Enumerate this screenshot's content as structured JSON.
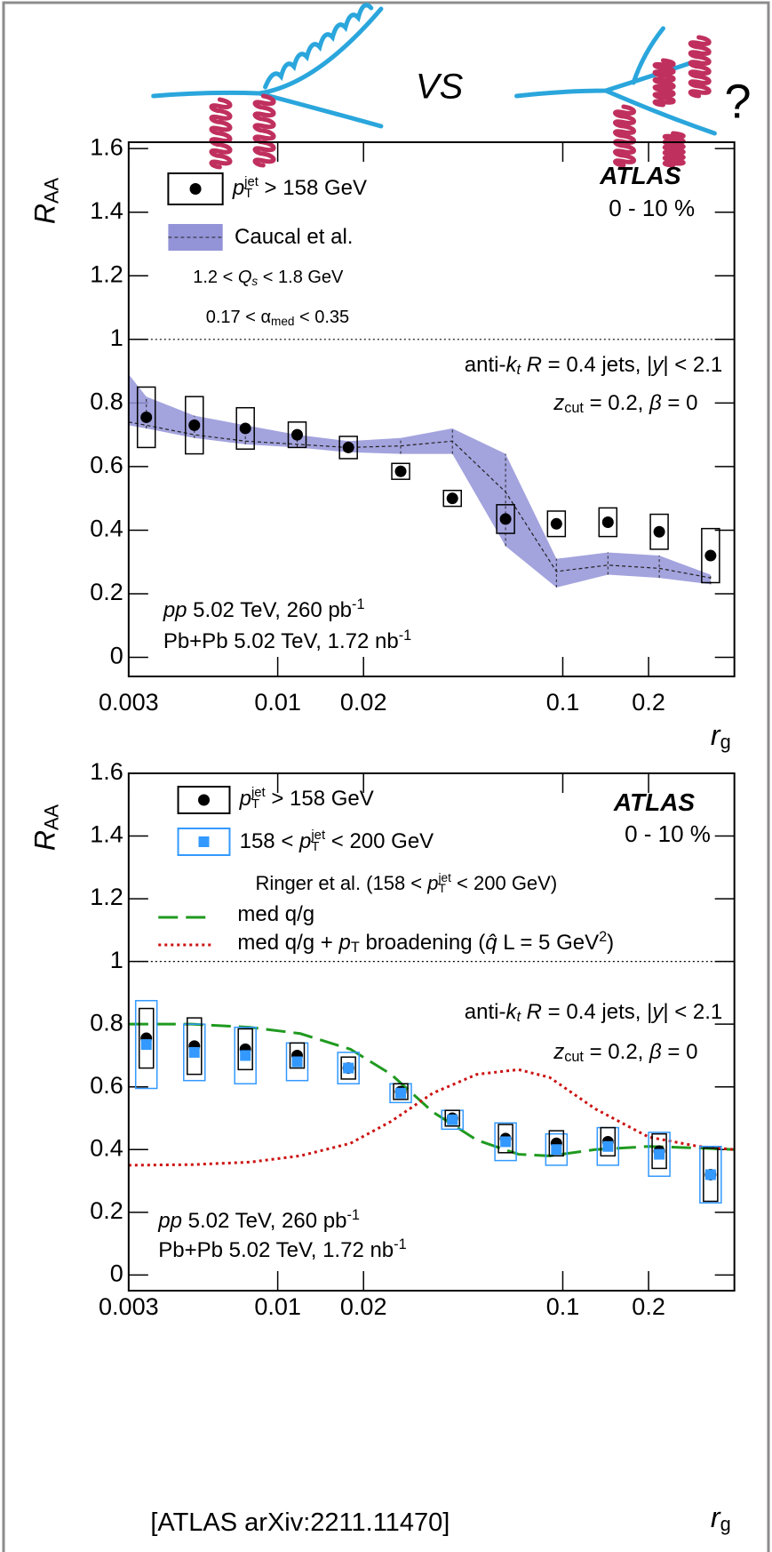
{
  "cartoon": {
    "left_label": "VS",
    "right_label": "?"
  },
  "chart_data": [
    {
      "type": "scatter",
      "xscale": "log",
      "x_label": [
        {
          "it": "r"
        },
        {
          "sub": "g"
        }
      ],
      "y_label": [
        {
          "it": "R"
        },
        {
          "sub": "AA"
        }
      ],
      "experiment": "ATLAS",
      "centrality": "0 - 10 %",
      "xlim": [
        0.003,
        0.4
      ],
      "ylim": [
        -0.06,
        1.62
      ],
      "xticks": [
        0.003,
        0.01,
        0.02,
        0.1,
        0.2
      ],
      "yticks": [
        0,
        0.2,
        0.4,
        0.6,
        0.8,
        1,
        1.2,
        1.4,
        1.6
      ],
      "reference_line": 1,
      "x": [
        0.00346,
        0.0051,
        0.0077,
        0.0117,
        0.0177,
        0.027,
        0.041,
        0.063,
        0.095,
        0.144,
        0.218,
        0.33
      ],
      "series": [
        {
          "name": [
            {
              "it": "p"
            },
            {
              "supsub": [
                "jet",
                "T"
              ]
            },
            " > 158 GeV"
          ],
          "color": "#000000",
          "marker": "circle",
          "values": [
            0.755,
            0.73,
            0.72,
            0.7,
            0.66,
            0.585,
            0.5,
            0.435,
            0.42,
            0.425,
            0.395,
            0.32
          ],
          "errors": [
            0.095,
            0.09,
            0.065,
            0.04,
            0.035,
            0.025,
            0.025,
            0.045,
            0.04,
            0.045,
            0.055,
            0.085
          ]
        },
        {
          "name": "Caucal et al.",
          "type": "band",
          "color": "#9393d8",
          "x": [
            0.003,
            0.00346,
            0.0051,
            0.0077,
            0.0117,
            0.0177,
            0.027,
            0.041,
            0.063,
            0.095,
            0.144,
            0.218,
            0.33
          ],
          "values": [
            0.74,
            0.73,
            0.7,
            0.68,
            0.67,
            0.66,
            0.665,
            0.68,
            0.52,
            0.27,
            0.29,
            0.28,
            0.25
          ],
          "lower": [
            0.73,
            0.72,
            0.69,
            0.67,
            0.66,
            0.645,
            0.64,
            0.64,
            0.35,
            0.22,
            0.26,
            0.25,
            0.23
          ],
          "upper": [
            0.89,
            0.82,
            0.76,
            0.73,
            0.7,
            0.68,
            0.69,
            0.72,
            0.64,
            0.31,
            0.33,
            0.32,
            0.26
          ]
        }
      ],
      "annotations": [
        [
          "1.2 < ",
          {
            "it": "Q"
          },
          {
            "itsub": "s"
          },
          " < 1.8 GeV"
        ],
        [
          "0.17 < α",
          {
            "sub": "med"
          },
          " < 0.35"
        ],
        [
          "anti-",
          {
            "it": "k"
          },
          {
            "itsub": "t"
          },
          " ",
          {
            "it": "R"
          },
          " = 0.4 jets, |",
          {
            "it": "y"
          },
          "| < 2.1"
        ],
        [
          {
            "it": "z"
          },
          {
            "sub": "cut"
          },
          " = 0.2, ",
          {
            "it": "β"
          },
          " = 0"
        ],
        [
          {
            "it": "pp"
          },
          " 5.02 TeV, 260 pb",
          {
            "sup": "-1"
          }
        ],
        [
          "Pb+Pb 5.02 TeV, 1.72 nb",
          {
            "sup": "-1"
          }
        ]
      ]
    },
    {
      "type": "scatter",
      "xscale": "log",
      "x_label": [
        {
          "it": "r"
        },
        {
          "sub": "g"
        }
      ],
      "y_label": [
        {
          "it": "R"
        },
        {
          "sub": "AA"
        }
      ],
      "experiment": "ATLAS",
      "centrality": "0 - 10 %",
      "xlim": [
        0.003,
        0.4
      ],
      "ylim": [
        -0.05,
        1.6
      ],
      "xticks": [
        0.003,
        0.01,
        0.02,
        0.1,
        0.2
      ],
      "yticks": [
        0,
        0.2,
        0.4,
        0.6,
        0.8,
        1,
        1.2,
        1.4,
        1.6
      ],
      "reference_line": 1,
      "x": [
        0.00346,
        0.0051,
        0.0077,
        0.0117,
        0.0177,
        0.027,
        0.041,
        0.063,
        0.095,
        0.144,
        0.218,
        0.33
      ],
      "legend_header": [
        "Ringer et al. (158 < ",
        {
          "it": "p"
        },
        {
          "supsub": [
            "jet",
            "T"
          ]
        },
        " < 200 GeV)"
      ],
      "series": [
        {
          "name": [
            {
              "it": "p"
            },
            {
              "supsub": [
                "jet",
                "T"
              ]
            },
            " > 158 GeV"
          ],
          "color": "#000000",
          "marker": "circle",
          "values": [
            0.755,
            0.73,
            0.72,
            0.7,
            0.66,
            0.585,
            0.5,
            0.435,
            0.42,
            0.425,
            0.395,
            0.32
          ],
          "errors": [
            0.095,
            0.09,
            0.065,
            0.04,
            0.035,
            0.025,
            0.025,
            0.045,
            0.04,
            0.045,
            0.055,
            0.085
          ]
        },
        {
          "name": [
            "158 < ",
            {
              "it": "p"
            },
            {
              "supsub": [
                "jet",
                "T"
              ]
            },
            " < 200 GeV"
          ],
          "color": "#3399ff",
          "marker": "square",
          "values": [
            0.735,
            0.71,
            0.7,
            0.68,
            0.66,
            0.58,
            0.495,
            0.425,
            0.4,
            0.41,
            0.385,
            0.32
          ],
          "errors": [
            0.14,
            0.09,
            0.09,
            0.06,
            0.05,
            0.03,
            0.03,
            0.06,
            0.05,
            0.06,
            0.07,
            0.09
          ]
        },
        {
          "name": "med q/g",
          "type": "line",
          "style": "dashed",
          "color": "#1f9a1f",
          "x": [
            0.003,
            0.005,
            0.008,
            0.012,
            0.018,
            0.025,
            0.035,
            0.05,
            0.07,
            0.09,
            0.13,
            0.2,
            0.3,
            0.4
          ],
          "values": [
            0.8,
            0.8,
            0.79,
            0.77,
            0.72,
            0.64,
            0.52,
            0.43,
            0.385,
            0.38,
            0.4,
            0.41,
            0.405,
            0.4
          ]
        },
        {
          "name": [
            "med q/g + ",
            {
              "it": "p"
            },
            {
              "sub": "T"
            },
            " broadening (",
            {
              "it": "q̂"
            },
            " L = 5 GeV",
            {
              "sup": "2"
            },
            ")"
          ],
          "type": "line",
          "style": "dotted",
          "color": "#cc1111",
          "x": [
            0.003,
            0.005,
            0.008,
            0.012,
            0.018,
            0.025,
            0.035,
            0.05,
            0.07,
            0.09,
            0.13,
            0.2,
            0.3,
            0.4
          ],
          "values": [
            0.35,
            0.352,
            0.36,
            0.38,
            0.42,
            0.49,
            0.58,
            0.64,
            0.655,
            0.63,
            0.53,
            0.44,
            0.41,
            0.4
          ]
        }
      ],
      "annotations": [
        [
          "anti-",
          {
            "it": "k"
          },
          {
            "itsub": "t"
          },
          " ",
          {
            "it": "R"
          },
          " = 0.4 jets, |",
          {
            "it": "y"
          },
          "| < 2.1"
        ],
        [
          {
            "it": "z"
          },
          {
            "sub": "cut"
          },
          " = 0.2, ",
          {
            "it": "β"
          },
          " = 0"
        ],
        [
          {
            "it": "pp"
          },
          " 5.02 TeV, 260 pb",
          {
            "sup": "-1"
          }
        ],
        [
          "Pb+Pb 5.02 TeV, 1.72 nb",
          {
            "sup": "-1"
          }
        ]
      ]
    }
  ],
  "footer": "[ATLAS arXiv:2211.11470]"
}
